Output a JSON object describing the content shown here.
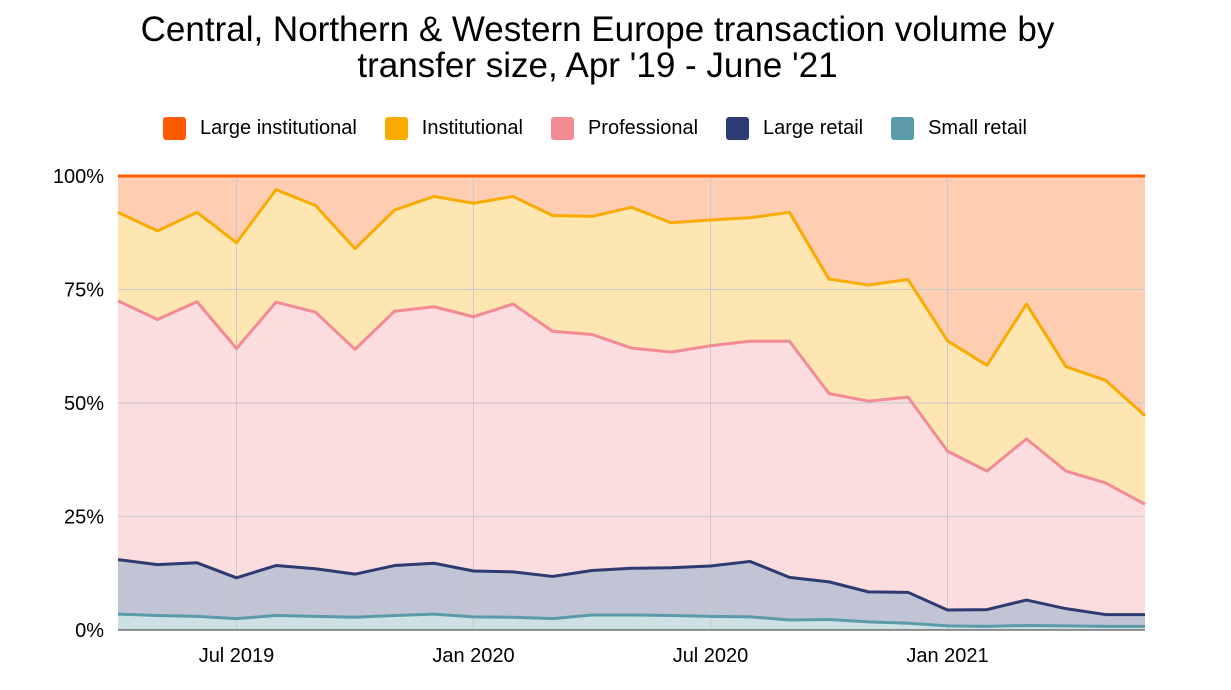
{
  "chart_data": {
    "type": "area",
    "stacked": "percent",
    "title_line1": "Central, Northern & Western Europe transaction volume by",
    "title_line2": "transfer size, Apr '19 - June '21",
    "x": [
      "Apr 2019",
      "May 2019",
      "Jun 2019",
      "Jul 2019",
      "Aug 2019",
      "Sep 2019",
      "Oct 2019",
      "Nov 2019",
      "Dec 2019",
      "Jan 2020",
      "Feb 2020",
      "Mar 2020",
      "Apr 2020",
      "May 2020",
      "Jun 2020",
      "Jul 2020",
      "Aug 2020",
      "Sep 2020",
      "Oct 2020",
      "Nov 2020",
      "Dec 2020",
      "Jan 2021",
      "Feb 2021",
      "Mar 2021",
      "Apr 2021",
      "May 2021",
      "Jun 2021"
    ],
    "x_tick_labels": [
      "Jul 2019",
      "Jan 2020",
      "Jul 2020",
      "Jan 2021"
    ],
    "y_tick_labels": [
      "0%",
      "25%",
      "50%",
      "75%",
      "100%"
    ],
    "ylim": [
      0,
      100
    ],
    "legend_position": "top",
    "grid": true,
    "series": [
      {
        "name": "Small retail",
        "color": "#5b9aa9",
        "values": [
          3.5,
          3.2,
          3.0,
          2.5,
          3.2,
          3.0,
          2.8,
          3.2,
          3.5,
          2.9,
          2.8,
          2.5,
          3.3,
          3.3,
          3.2,
          3.0,
          2.9,
          2.2,
          2.3,
          1.8,
          1.5,
          0.9,
          0.8,
          1.0,
          0.9,
          0.8,
          0.8
        ]
      },
      {
        "name": "Large retail",
        "color": "#2e3a72",
        "values": [
          12.0,
          11.2,
          11.8,
          9.0,
          11.0,
          10.5,
          9.5,
          11.0,
          11.2,
          10.1,
          10.0,
          9.3,
          9.8,
          10.3,
          10.5,
          11.1,
          12.2,
          9.4,
          8.3,
          6.6,
          6.8,
          3.5,
          3.7,
          5.6,
          3.8,
          2.6,
          2.6
        ]
      },
      {
        "name": "Professional",
        "color": "#f28b94",
        "values": [
          57.0,
          54.0,
          57.5,
          50.5,
          58.0,
          56.5,
          49.5,
          56.0,
          56.5,
          56.0,
          59.0,
          54.0,
          52.0,
          48.5,
          47.5,
          48.5,
          48.5,
          52.0,
          41.5,
          42.0,
          43.0,
          35.0,
          30.5,
          35.5,
          30.3,
          29.0,
          24.3
        ]
      },
      {
        "name": "Institutional",
        "color": "#f9ab00",
        "values": [
          19.5,
          19.5,
          19.7,
          23.3,
          24.8,
          23.5,
          22.2,
          22.3,
          24.3,
          25.0,
          23.7,
          25.5,
          26.0,
          31.0,
          28.5,
          27.7,
          27.2,
          28.4,
          25.2,
          25.6,
          25.9,
          24.3,
          23.3,
          29.7,
          23.0,
          22.6,
          19.5
        ]
      },
      {
        "name": "Large institutional",
        "color": "#ff5a00",
        "values": [
          8.0,
          12.1,
          8.0,
          14.7,
          3.0,
          6.5,
          16.0,
          7.5,
          4.5,
          6.0,
          4.5,
          8.7,
          8.9,
          6.9,
          10.3,
          9.7,
          9.2,
          8.0,
          22.7,
          24.0,
          22.8,
          36.3,
          41.7,
          28.2,
          42.0,
          45.0,
          52.8
        ]
      }
    ]
  }
}
